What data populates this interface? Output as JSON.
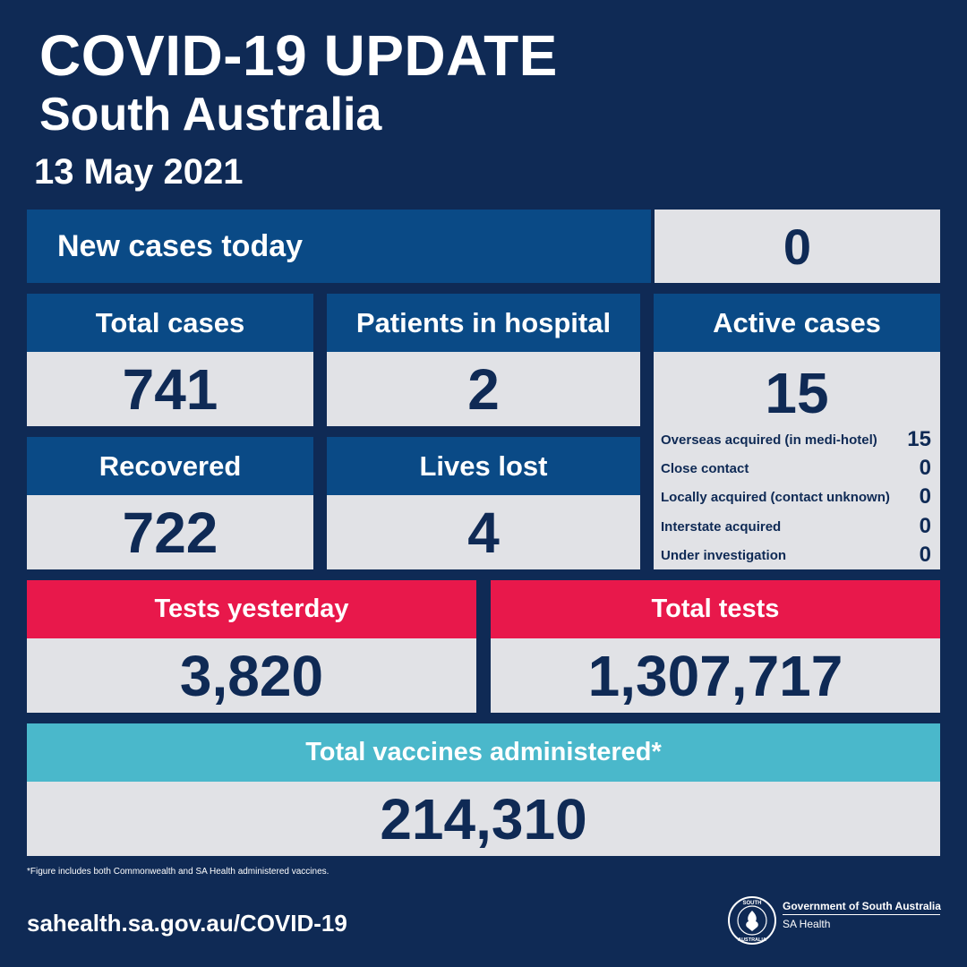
{
  "header": {
    "title": "COVID-19 UPDATE",
    "subtitle": "South Australia",
    "date": "13 May 2021"
  },
  "new_cases": {
    "label": "New cases today",
    "value": "0"
  },
  "total_cases": {
    "label": "Total cases",
    "value": "741"
  },
  "hospital": {
    "label": "Patients in hospital",
    "value": "2"
  },
  "recovered": {
    "label": "Recovered",
    "value": "722"
  },
  "lives_lost": {
    "label": "Lives lost",
    "value": "4"
  },
  "active": {
    "label": "Active cases",
    "value": "15",
    "breakdown": [
      {
        "label": "Overseas acquired (in medi-hotel)",
        "value": "15"
      },
      {
        "label": "Close contact",
        "value": "0"
      },
      {
        "label": "Locally acquired (contact unknown)",
        "value": "0"
      },
      {
        "label": "Interstate acquired",
        "value": "0"
      },
      {
        "label": "Under investigation",
        "value": "0"
      }
    ]
  },
  "tests_yesterday": {
    "label": "Tests yesterday",
    "value": "3,820"
  },
  "total_tests": {
    "label": "Total tests",
    "value": "1,307,717"
  },
  "vaccines": {
    "label": "Total vaccines administered*",
    "value": "214,310"
  },
  "footnote": "*Figure includes both Commonwealth and SA Health administered vaccines.",
  "website": "sahealth.sa.gov.au/COVID-19",
  "government": {
    "name": "Government of South Australia",
    "department": "SA Health",
    "logo_text_top": "SOUTH",
    "logo_text_bottom": "AUSTRALIA"
  },
  "colors": {
    "background": "#0f2a55",
    "header_blue": "#0a4a86",
    "header_red": "#e8184b",
    "header_teal": "#4ab8cb",
    "value_box": "#e1e2e6",
    "value_text": "#0f2a55"
  }
}
